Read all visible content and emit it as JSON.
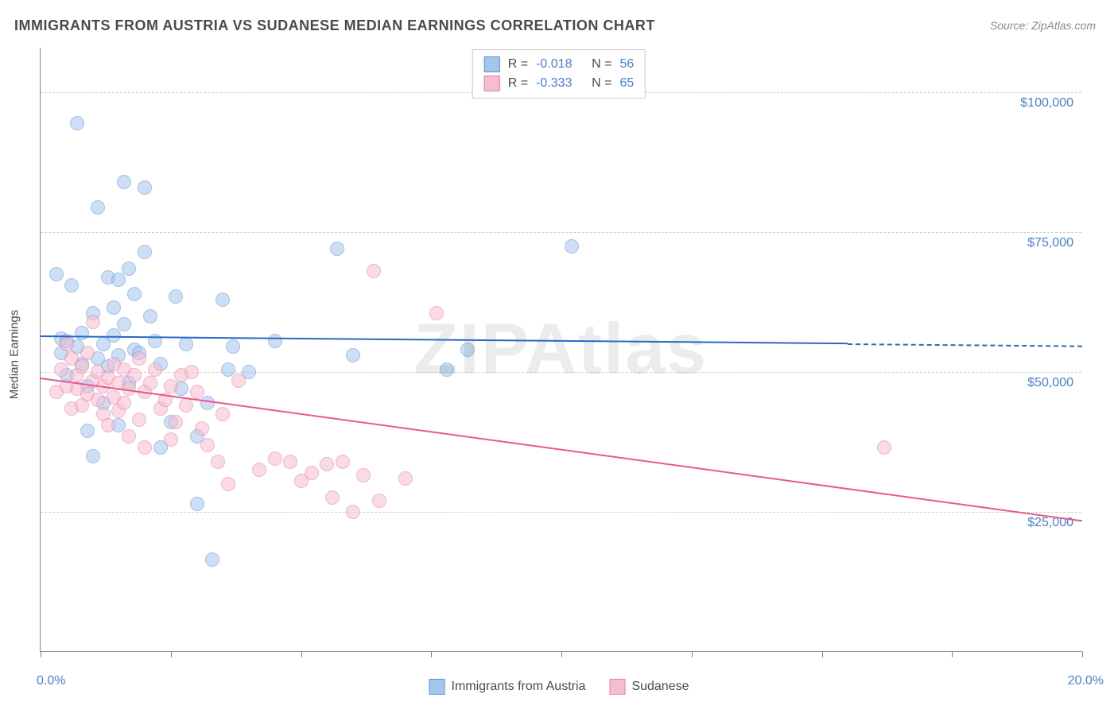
{
  "title": "IMMIGRANTS FROM AUSTRIA VS SUDANESE MEDIAN EARNINGS CORRELATION CHART",
  "source": "Source: ZipAtlas.com",
  "watermark": "ZIPAtlas",
  "ylabel": "Median Earnings",
  "chart": {
    "type": "scatter",
    "background_color": "#ffffff",
    "grid_color": "#d0d0d0",
    "axis_color": "#808080",
    "tick_label_color": "#4a7fd8",
    "xlim": [
      0,
      20
    ],
    "ylim": [
      0,
      108000
    ],
    "y_gridlines": [
      25000,
      50000,
      75000,
      100000
    ],
    "ytick_labels": [
      "$25,000",
      "$50,000",
      "$75,000",
      "$100,000"
    ],
    "xtick_positions": [
      0,
      2.5,
      5,
      7.5,
      10,
      12.5,
      15,
      17.5,
      20
    ],
    "x_start_label": "0.0%",
    "x_end_label": "20.0%",
    "marker_radius": 9,
    "marker_opacity": 0.55,
    "series": [
      {
        "name": "Immigrants from Austria",
        "fill_color": "#a6c5ec",
        "stroke_color": "#5a8fd6",
        "line_color": "#2968c8",
        "r_value": "-0.018",
        "n_value": "56",
        "trend": {
          "x1": 0,
          "y1": 56500,
          "x2": 15.5,
          "y2": 55200,
          "dashed_to_x": 20
        },
        "points": [
          [
            0.3,
            67500
          ],
          [
            0.4,
            56000
          ],
          [
            0.4,
            53500
          ],
          [
            0.5,
            49500
          ],
          [
            0.5,
            55500
          ],
          [
            0.6,
            65500
          ],
          [
            0.7,
            94500
          ],
          [
            0.7,
            54500
          ],
          [
            0.8,
            51500
          ],
          [
            0.8,
            57000
          ],
          [
            0.9,
            39500
          ],
          [
            0.9,
            47500
          ],
          [
            1.0,
            35000
          ],
          [
            1.0,
            60500
          ],
          [
            1.1,
            52500
          ],
          [
            1.1,
            79500
          ],
          [
            1.2,
            55000
          ],
          [
            1.2,
            44500
          ],
          [
            1.3,
            67000
          ],
          [
            1.3,
            51000
          ],
          [
            1.4,
            56500
          ],
          [
            1.4,
            61500
          ],
          [
            1.5,
            66500
          ],
          [
            1.5,
            53000
          ],
          [
            1.5,
            40500
          ],
          [
            1.6,
            84000
          ],
          [
            1.6,
            58500
          ],
          [
            1.7,
            68500
          ],
          [
            1.7,
            48000
          ],
          [
            1.8,
            54000
          ],
          [
            1.8,
            64000
          ],
          [
            1.9,
            53500
          ],
          [
            2.0,
            83000
          ],
          [
            2.0,
            71500
          ],
          [
            2.1,
            60000
          ],
          [
            2.2,
            55500
          ],
          [
            2.3,
            51500
          ],
          [
            2.3,
            36500
          ],
          [
            2.5,
            41000
          ],
          [
            2.6,
            63500
          ],
          [
            2.7,
            47000
          ],
          [
            2.8,
            55000
          ],
          [
            3.0,
            38500
          ],
          [
            3.0,
            26500
          ],
          [
            3.2,
            44500
          ],
          [
            3.3,
            16500
          ],
          [
            3.5,
            63000
          ],
          [
            3.6,
            50500
          ],
          [
            3.7,
            54500
          ],
          [
            4.0,
            50000
          ],
          [
            4.5,
            55500
          ],
          [
            5.7,
            72000
          ],
          [
            6.0,
            53000
          ],
          [
            7.8,
            50500
          ],
          [
            10.2,
            72500
          ],
          [
            8.2,
            54000
          ]
        ]
      },
      {
        "name": "Sudanese",
        "fill_color": "#f6bdd0",
        "stroke_color": "#e77aa0",
        "line_color": "#e85a8a",
        "r_value": "-0.333",
        "n_value": "65",
        "trend": {
          "x1": 0,
          "y1": 49000,
          "x2": 20,
          "y2": 23500
        },
        "points": [
          [
            0.3,
            46500
          ],
          [
            0.4,
            50500
          ],
          [
            0.5,
            55000
          ],
          [
            0.5,
            47500
          ],
          [
            0.6,
            52500
          ],
          [
            0.6,
            43500
          ],
          [
            0.7,
            47000
          ],
          [
            0.7,
            49500
          ],
          [
            0.8,
            51000
          ],
          [
            0.8,
            44000
          ],
          [
            0.9,
            53500
          ],
          [
            0.9,
            46000
          ],
          [
            1.0,
            48500
          ],
          [
            1.0,
            59000
          ],
          [
            1.1,
            45000
          ],
          [
            1.1,
            50000
          ],
          [
            1.2,
            42500
          ],
          [
            1.2,
            47500
          ],
          [
            1.3,
            49000
          ],
          [
            1.3,
            40500
          ],
          [
            1.4,
            45500
          ],
          [
            1.4,
            51500
          ],
          [
            1.5,
            43000
          ],
          [
            1.5,
            48000
          ],
          [
            1.6,
            50500
          ],
          [
            1.6,
            44500
          ],
          [
            1.7,
            47000
          ],
          [
            1.7,
            38500
          ],
          [
            1.8,
            49500
          ],
          [
            1.9,
            41500
          ],
          [
            1.9,
            52500
          ],
          [
            2.0,
            46500
          ],
          [
            2.0,
            36500
          ],
          [
            2.1,
            48000
          ],
          [
            2.2,
            50500
          ],
          [
            2.3,
            43500
          ],
          [
            2.4,
            45000
          ],
          [
            2.5,
            47500
          ],
          [
            2.6,
            41000
          ],
          [
            2.7,
            49500
          ],
          [
            2.8,
            44000
          ],
          [
            2.9,
            50000
          ],
          [
            3.0,
            46500
          ],
          [
            3.1,
            40000
          ],
          [
            3.2,
            37000
          ],
          [
            3.4,
            34000
          ],
          [
            3.6,
            30000
          ],
          [
            3.8,
            48500
          ],
          [
            4.2,
            32500
          ],
          [
            4.5,
            34500
          ],
          [
            4.8,
            34000
          ],
          [
            5.0,
            30500
          ],
          [
            5.2,
            32000
          ],
          [
            5.5,
            33500
          ],
          [
            5.6,
            27500
          ],
          [
            5.8,
            34000
          ],
          [
            6.0,
            25000
          ],
          [
            6.2,
            31500
          ],
          [
            6.4,
            68000
          ],
          [
            6.5,
            27000
          ],
          [
            7.0,
            31000
          ],
          [
            7.6,
            60500
          ],
          [
            3.5,
            42500
          ],
          [
            2.5,
            38000
          ],
          [
            16.2,
            36500
          ]
        ]
      }
    ]
  },
  "legend_top": {
    "r_label": "R =",
    "n_label": "N ="
  },
  "legend_bottom": {
    "items": [
      "Immigrants from Austria",
      "Sudanese"
    ]
  }
}
